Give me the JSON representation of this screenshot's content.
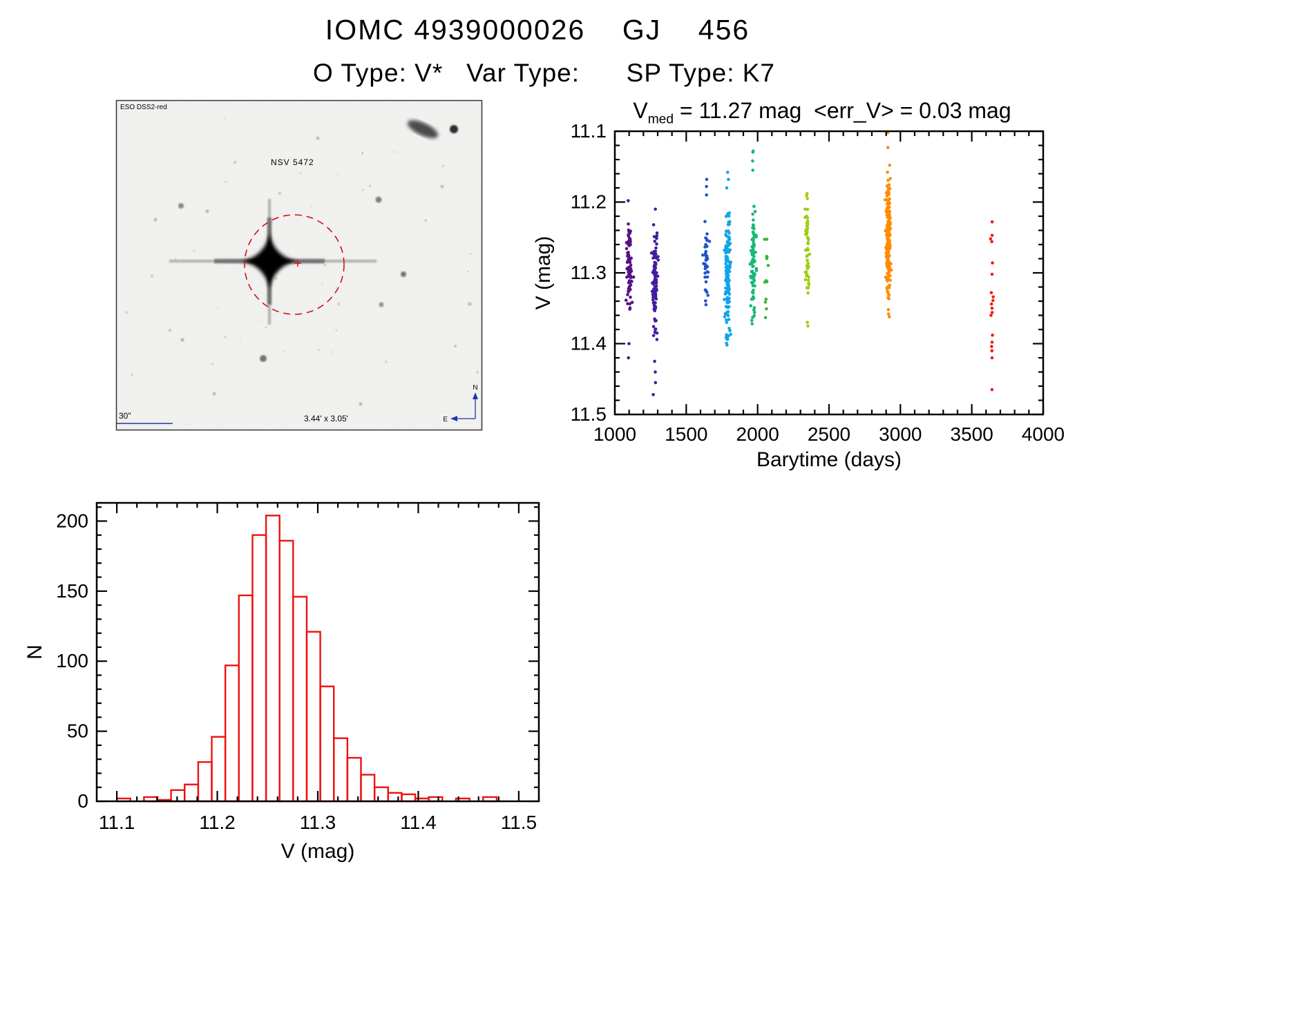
{
  "page": {
    "title": "IOMC 4939000026    GJ    456",
    "subtitle": "O Type: V*   Var Type:      SP Type: K7"
  },
  "finder": {
    "survey_label": "ESO DSS2-red",
    "star_label": "NSV 5472",
    "scale_label": "30\"",
    "fov_label": "3.44' x 3.05'",
    "compass_north": "N",
    "compass_east": "E",
    "annotation_blue": "#2233aa",
    "annotation_red": "#bb2222"
  },
  "stats": {
    "v_med_mag": 11.27,
    "err_v_mag": 0.03
  },
  "chart_data": [
    {
      "id": "lightcurve",
      "type": "scatter",
      "title": "V_med = 11.27 mag <err_V> = 0.03 mag",
      "title_parts": {
        "base": "V",
        "sub": "med",
        "rest": " = 11.27 mag  <err_V> = 0.03 mag"
      },
      "xlabel": "Barytime (days)",
      "ylabel": "V (mag)",
      "xlim": [
        1000,
        4000
      ],
      "ylim": [
        11.1,
        11.5
      ],
      "y_axis_inverted": true,
      "x_major_ticks": [
        1000,
        1500,
        2000,
        2500,
        3000,
        3500,
        4000
      ],
      "y_major_ticks": [
        11.1,
        11.2,
        11.3,
        11.4,
        11.5
      ],
      "grid": false,
      "clusters": [
        {
          "t": 1100,
          "color": "#571385",
          "n": 85,
          "v_mean": 11.29,
          "v_sigma": 0.03,
          "v_min": 11.195,
          "v_max": 11.42,
          "x_sigma": 9,
          "extra_v": [
            11.198,
            11.4,
            11.42
          ]
        },
        {
          "t": 1280,
          "color": "#431d9e",
          "n": 100,
          "v_mean": 11.32,
          "v_sigma": 0.038,
          "v_min": 11.205,
          "v_max": 11.475,
          "x_sigma": 9,
          "extra_v": [
            11.425,
            11.44,
            11.455,
            11.472,
            11.21
          ]
        },
        {
          "t": 1640,
          "color": "#2253cc",
          "n": 40,
          "v_mean": 11.285,
          "v_sigma": 0.035,
          "v_min": 11.165,
          "v_max": 11.345,
          "x_sigma": 8,
          "extra_v": [
            11.168,
            11.178,
            11.19,
            11.345
          ]
        },
        {
          "t": 1790,
          "color": "#11a5e8",
          "n": 160,
          "v_mean": 11.3,
          "v_sigma": 0.038,
          "v_min": 11.155,
          "v_max": 11.405,
          "x_sigma": 10,
          "extra_v": [
            11.158,
            11.168,
            11.18,
            11.392,
            11.402
          ]
        },
        {
          "t": 1970,
          "color": "#18b878",
          "n": 90,
          "v_mean": 11.285,
          "v_sigma": 0.045,
          "v_min": 11.125,
          "v_max": 11.375,
          "x_sigma": 9,
          "extra_v": [
            11.128,
            11.142,
            11.155,
            11.372
          ]
        },
        {
          "t": 2060,
          "color": "#3cb52e",
          "n": 15,
          "v_mean": 11.3,
          "v_sigma": 0.05,
          "v_min": 11.18,
          "v_max": 11.37,
          "x_sigma": 7,
          "extra_v": []
        },
        {
          "t": 2350,
          "color": "#9fce10",
          "n": 55,
          "v_mean": 11.27,
          "v_sigma": 0.035,
          "v_min": 11.185,
          "v_max": 11.375,
          "x_sigma": 8,
          "extra_v": [
            11.188,
            11.195,
            11.37,
            11.375
          ]
        },
        {
          "t": 2915,
          "color": "#ff8c00",
          "n": 190,
          "v_mean": 11.25,
          "v_sigma": 0.038,
          "v_min": 11.155,
          "v_max": 11.365,
          "x_sigma": 8,
          "extra_v": [
            11.102,
            11.123,
            11.148,
            11.158,
            11.352,
            11.358,
            11.362
          ]
        },
        {
          "t": 3640,
          "color": "#f01f10",
          "n": 0,
          "v_mean": 11.33,
          "v_sigma": 0.06,
          "v_min": 11.22,
          "v_max": 11.47,
          "x_sigma": 4,
          "v_points": [
            11.228,
            11.247,
            11.252,
            11.256,
            11.286,
            11.302,
            11.328,
            11.334,
            11.339,
            11.344,
            11.35,
            11.356,
            11.36,
            11.388,
            11.398,
            11.404,
            11.41,
            11.42,
            11.465
          ]
        }
      ]
    },
    {
      "id": "histogram",
      "type": "bar",
      "title": "",
      "xlabel": "V (mag)",
      "ylabel": "N",
      "xlim": [
        11.08,
        11.52
      ],
      "ylim": [
        0,
        213
      ],
      "x_major_ticks": [
        11.1,
        11.2,
        11.3,
        11.4,
        11.5
      ],
      "y_major_ticks": [
        0,
        50,
        100,
        150,
        200
      ],
      "bin_start": 11.1,
      "bin_width": 0.0135,
      "counts": [
        2,
        0,
        3,
        1,
        8,
        12,
        28,
        46,
        97,
        147,
        190,
        204,
        186,
        146,
        121,
        82,
        45,
        31,
        19,
        10,
        6,
        5,
        2,
        3,
        0,
        2,
        0,
        3
      ],
      "bar_color": "#ee1111",
      "grid": false
    }
  ]
}
